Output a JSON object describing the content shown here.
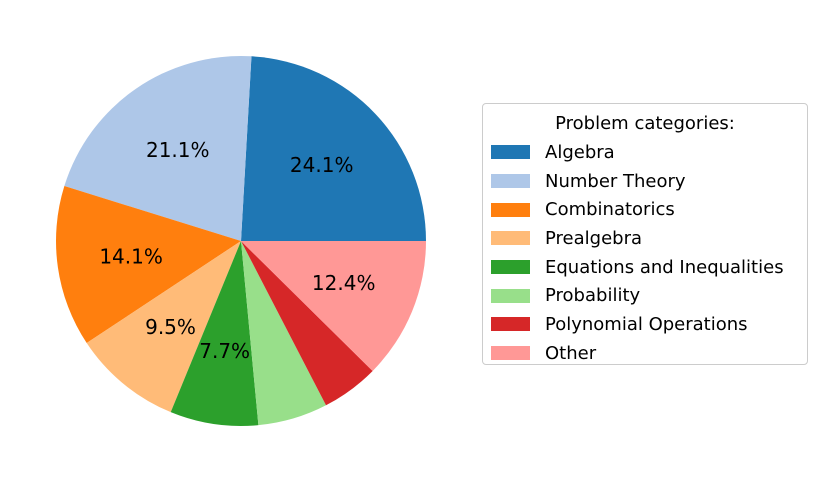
{
  "chart_data": {
    "type": "pie",
    "legend_title": "Problem categories:",
    "legend_position": "right",
    "start_angle_deg": 0,
    "direction": "counterclockwise",
    "slices": [
      {
        "label": "Algebra",
        "value": 24.1,
        "pct_label": "24.1%",
        "color": "#1f77b4"
      },
      {
        "label": "Number Theory",
        "value": 21.1,
        "pct_label": "21.1%",
        "color": "#aec7e8"
      },
      {
        "label": "Combinatorics",
        "value": 14.1,
        "pct_label": "14.1%",
        "color": "#ff7f0e"
      },
      {
        "label": "Prealgebra",
        "value": 9.5,
        "pct_label": "9.5%",
        "color": "#ffbb78"
      },
      {
        "label": "Equations and Inequalities",
        "value": 7.7,
        "pct_label": "7.7%",
        "color": "#2ca02c"
      },
      {
        "label": "Probability",
        "value": 6.1,
        "pct_label": "",
        "color": "#98df8a"
      },
      {
        "label": "Polynomial Operations",
        "value": 5.0,
        "pct_label": "",
        "color": "#d62728"
      },
      {
        "label": "Other",
        "value": 12.4,
        "pct_label": "12.4%",
        "color": "#ff9896"
      }
    ]
  }
}
